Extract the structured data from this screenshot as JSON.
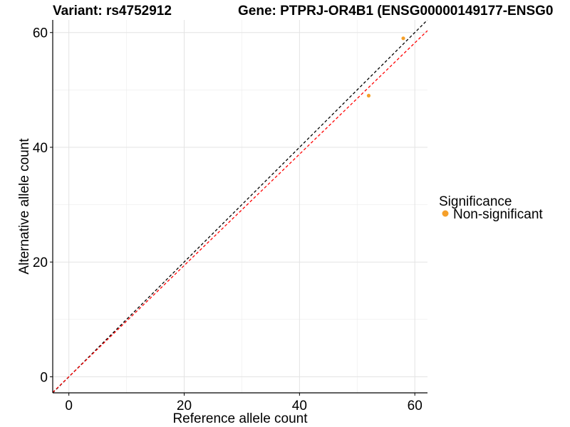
{
  "chart_data": {
    "type": "scatter",
    "title_left": "Variant: rs4752912",
    "title_right": "Gene: PTPRJ-OR4B1 (ENSG00000149177-ENSG0",
    "xlabel": "Reference allele count",
    "ylabel": "Alternative allele count",
    "xlim": [
      -2.8,
      62.2
    ],
    "ylim": [
      -2.8,
      62.2
    ],
    "xticks": [
      0,
      20,
      40,
      60
    ],
    "yticks": [
      0,
      20,
      40,
      60
    ],
    "grid": true,
    "legend": {
      "title": "Significance",
      "position": "right",
      "entries": [
        {
          "label": "Non-significant",
          "color": "#F5A02A"
        }
      ]
    },
    "series": [
      {
        "name": "Non-significant",
        "color": "#F5A02A",
        "points": [
          {
            "x": 52,
            "y": 49
          },
          {
            "x": 58,
            "y": 59
          }
        ]
      }
    ],
    "reference_lines": [
      {
        "style": "dashed",
        "color": "#000000",
        "slope": 1.0,
        "intercept": 0
      },
      {
        "style": "dashed",
        "color": "#FF0000",
        "slope": 0.97,
        "intercept": 0
      }
    ]
  }
}
